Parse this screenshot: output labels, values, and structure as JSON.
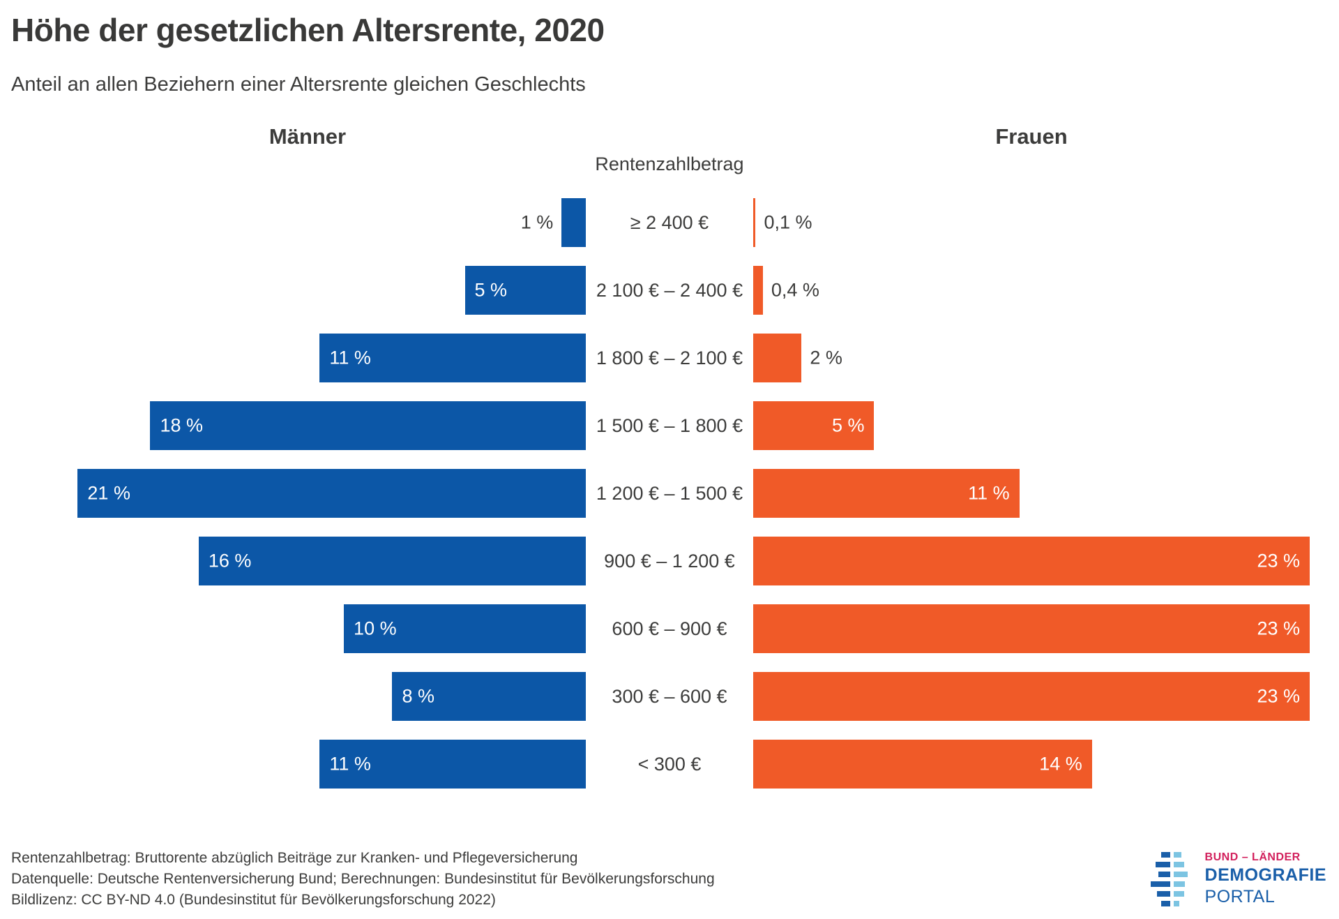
{
  "title": "Höhe der gesetzlichen Altersrente, 2020",
  "subtitle": "Anteil an allen Beziehern einer Altersrente gleichen Geschlechts",
  "colors": {
    "men": "#0C57A7",
    "women": "#F05A28",
    "text": "#3C3C3B",
    "logo_blue": "#1A5FA9",
    "logo_lightblue": "#7CC4E2",
    "logo_crimson": "#D2205C"
  },
  "chart_data": {
    "type": "bar",
    "variant": "population-pyramid-horizontal",
    "unit": "%",
    "scale_max": 23,
    "left_series_label": "Männer",
    "right_series_label": "Frauen",
    "center_axis_label": "Rentenzahlbetrag",
    "categories": [
      "≥ 2 400 €",
      "2 100 € – 2 400 €",
      "1 800 € – 2 100 €",
      "1 500 € – 1 800 €",
      "1 200 € – 1 500 €",
      "900 € – 1 200 €",
      "600 € – 900 €",
      "300 € – 600 €",
      "< 300 €"
    ],
    "series": [
      {
        "name": "Männer",
        "color": "#0C57A7",
        "values": [
          1,
          5,
          11,
          18,
          21,
          16,
          10,
          8,
          11
        ]
      },
      {
        "name": "Frauen",
        "color": "#F05A28",
        "values": [
          0.1,
          0.4,
          2,
          5,
          11,
          23,
          23,
          23,
          14
        ]
      }
    ],
    "rows": [
      {
        "category": "≥ 2 400 €",
        "men": {
          "value": 1,
          "label": "1 %",
          "label_pos": "outside"
        },
        "women": {
          "value": 0.1,
          "label": "0,1 %",
          "label_pos": "outside"
        }
      },
      {
        "category": "2 100 € – 2 400 €",
        "men": {
          "value": 5,
          "label": "5 %",
          "label_pos": "inside"
        },
        "women": {
          "value": 0.4,
          "label": "0,4 %",
          "label_pos": "outside"
        }
      },
      {
        "category": "1 800 € – 2 100 €",
        "men": {
          "value": 11,
          "label": "11 %",
          "label_pos": "inside"
        },
        "women": {
          "value": 2,
          "label": "2 %",
          "label_pos": "outside"
        }
      },
      {
        "category": "1 500 € – 1 800 €",
        "men": {
          "value": 18,
          "label": "18 %",
          "label_pos": "inside"
        },
        "women": {
          "value": 5,
          "label": "5 %",
          "label_pos": "inside"
        }
      },
      {
        "category": "1 200 € – 1 500 €",
        "men": {
          "value": 21,
          "label": "21 %",
          "label_pos": "inside"
        },
        "women": {
          "value": 11,
          "label": "11 %",
          "label_pos": "inside"
        }
      },
      {
        "category": "900 € – 1 200 €",
        "men": {
          "value": 16,
          "label": "16 %",
          "label_pos": "inside"
        },
        "women": {
          "value": 23,
          "label": "23 %",
          "label_pos": "inside"
        }
      },
      {
        "category": "600 € – 900 €",
        "men": {
          "value": 10,
          "label": "10 %",
          "label_pos": "inside"
        },
        "women": {
          "value": 23,
          "label": "23 %",
          "label_pos": "inside"
        }
      },
      {
        "category": "300 € – 600 €",
        "men": {
          "value": 8,
          "label": "8 %",
          "label_pos": "inside"
        },
        "women": {
          "value": 23,
          "label": "23 %",
          "label_pos": "inside"
        }
      },
      {
        "category": "< 300 €",
        "men": {
          "value": 11,
          "label": "11 %",
          "label_pos": "inside"
        },
        "women": {
          "value": 14,
          "label": "14 %",
          "label_pos": "inside"
        }
      }
    ]
  },
  "footer": {
    "line1": "Rentenzahlbetrag: Bruttorente abzüglich Beiträge zur Kranken- und Pflegeversicherung",
    "line2": "Datenquelle: Deutsche Rentenversicherung Bund; Berechnungen: Bundesinstitut für Bevölkerungsforschung",
    "line3": "Bildlizenz: CC BY-ND 4.0 (Bundesinstitut für Bevölkerungsforschung 2022)"
  },
  "logo": {
    "line1": "BUND – LÄNDER",
    "line2": "DEMOGRAFIE",
    "line3": "PORTAL"
  }
}
